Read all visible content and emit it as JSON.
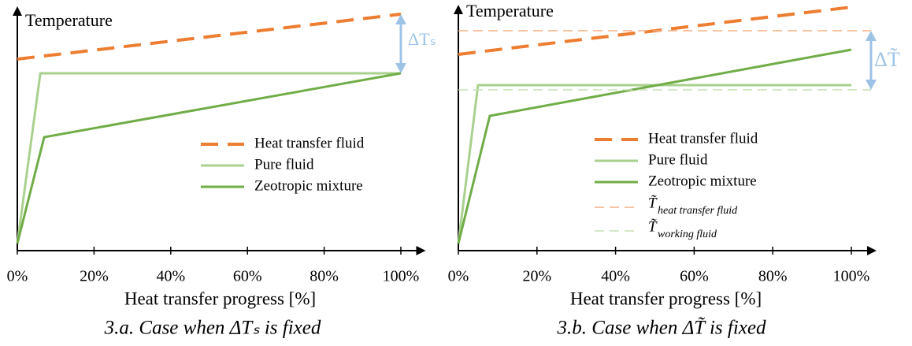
{
  "chart_data": [
    {
      "type": "line",
      "y_label": "Temperature",
      "x_label": "Heat transfer progress [%]",
      "caption": "3.a. Case when ΔTₛ is fixed",
      "xlim": [
        0,
        104
      ],
      "ylim": [
        0,
        105
      ],
      "xticks": [
        {
          "value": 0,
          "label": "0%"
        },
        {
          "value": 20,
          "label": "20%"
        },
        {
          "value": 40,
          "label": "40%"
        },
        {
          "value": 60,
          "label": "60%"
        },
        {
          "value": 80,
          "label": "80%"
        },
        {
          "value": 100,
          "label": "100%"
        }
      ],
      "series": [
        {
          "name": "Heat transfer fluid",
          "color": "#ed7d31",
          "dash": "long",
          "x": [
            0,
            100
          ],
          "values": [
            81,
            100
          ]
        },
        {
          "name": "Pure fluid",
          "color": "#a9d18e",
          "x": [
            0,
            6,
            100
          ],
          "values": [
            3,
            75,
            75
          ]
        },
        {
          "name": "Zeotropic mixture",
          "color": "#70ad47",
          "x": [
            0,
            7,
            100
          ],
          "values": [
            3,
            48,
            75
          ]
        }
      ],
      "delta": {
        "label": "ΔTₛ",
        "color": "#9dc3e6",
        "x": 100,
        "from": 75,
        "to": 100
      }
    },
    {
      "type": "line",
      "y_label": "Temperature",
      "x_label": "Heat transfer progress [%]",
      "caption": "3.b. Case when ΔT̃ is fixed",
      "xlim": [
        0,
        104
      ],
      "ylim": [
        0,
        105
      ],
      "xticks": [
        {
          "value": 0,
          "label": "0%"
        },
        {
          "value": 20,
          "label": "20%"
        },
        {
          "value": 40,
          "label": "40%"
        },
        {
          "value": 60,
          "label": "60%"
        },
        {
          "value": 80,
          "label": "80%"
        },
        {
          "value": 100,
          "label": "100%"
        }
      ],
      "series": [
        {
          "name": "Heat transfer fluid",
          "color": "#ed7d31",
          "dash": "long",
          "x": [
            0,
            100
          ],
          "values": [
            83,
            103
          ]
        },
        {
          "name": "Pure fluid",
          "color": "#a9d18e",
          "x": [
            0,
            5,
            100
          ],
          "values": [
            3,
            70,
            70
          ]
        },
        {
          "name": "Zeotropic mixture",
          "color": "#70ad47",
          "x": [
            0,
            8,
            100
          ],
          "values": [
            3,
            57,
            85
          ]
        },
        {
          "name": "T̃",
          "name_subscript": "heat transfer fluid",
          "color": "#f4b183",
          "dash": "thin",
          "x": [
            0,
            105
          ],
          "values": [
            93,
            93
          ]
        },
        {
          "name": "T̃",
          "name_subscript": "working fluid",
          "color": "#c5e0b4",
          "dash": "thin",
          "x": [
            0,
            105
          ],
          "values": [
            68,
            68
          ]
        }
      ],
      "delta": {
        "label": "ΔT̃",
        "color": "#9dc3e6",
        "x": 105,
        "from": 68,
        "to": 93
      }
    }
  ]
}
